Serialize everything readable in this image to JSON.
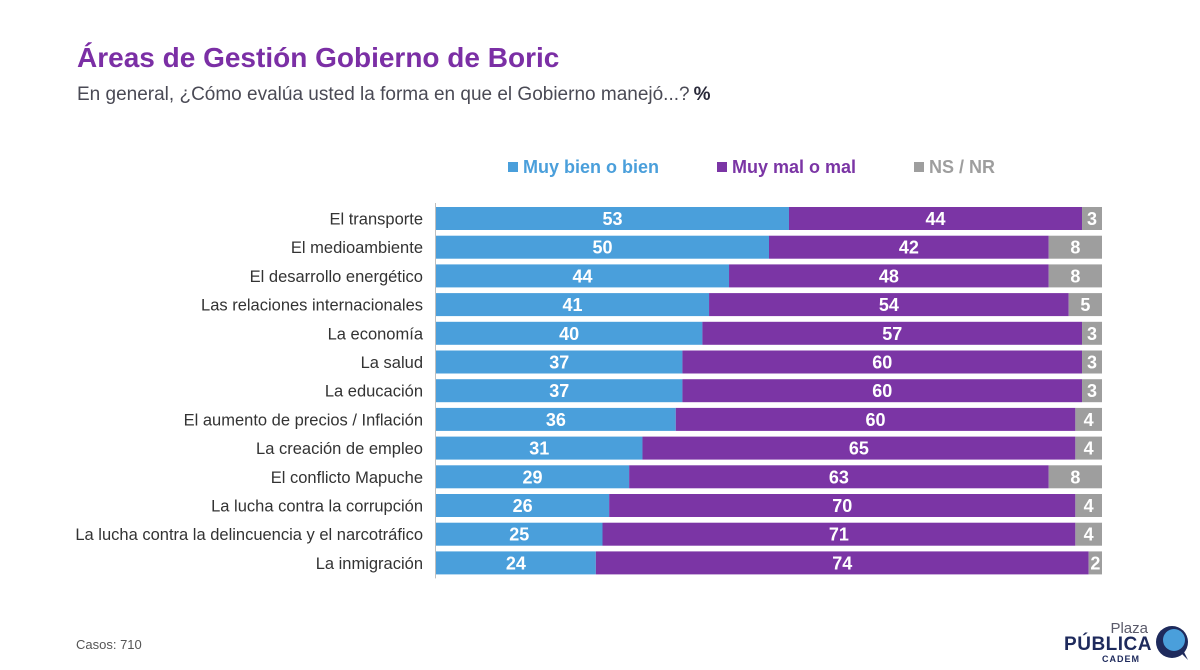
{
  "header": {
    "title": "Áreas de Gestión Gobierno de Boric",
    "subtitle": "En general, ¿Cómo evalúa usted la forma en que el Gobierno manejó...?",
    "unit": "%"
  },
  "footer": {
    "cases": "Casos: 710"
  },
  "logo": {
    "line1": "Plaza",
    "line2": "PÚBLICA",
    "line3": "CADEM"
  },
  "chart_data": {
    "type": "bar",
    "orientation": "horizontal",
    "stacked": true,
    "grid": false,
    "legend_position": "top",
    "xlim": [
      0,
      100
    ],
    "categories": [
      "El transporte",
      "El medioambiente",
      "El desarrollo energético",
      "Las relaciones internacionales",
      "La economía",
      "La salud",
      "La educación",
      "El aumento de precios / Inflación",
      "La creación de empleo",
      "El conflicto Mapuche",
      "La lucha contra la corrupción",
      "La lucha contra la delincuencia y el narcotráfico",
      "La inmigración"
    ],
    "series": [
      {
        "name": "Muy bien o bien",
        "color": "#4A9FDB",
        "values": [
          53,
          50,
          44,
          41,
          40,
          37,
          37,
          36,
          31,
          29,
          26,
          25,
          24
        ]
      },
      {
        "name": "Muy mal o mal",
        "color": "#7B35A5",
        "values": [
          44,
          42,
          48,
          54,
          57,
          60,
          60,
          60,
          65,
          63,
          70,
          71,
          74
        ]
      },
      {
        "name": "NS / NR",
        "color": "#9E9E9E",
        "values": [
          3,
          8,
          8,
          5,
          3,
          3,
          3,
          4,
          4,
          8,
          4,
          4,
          2
        ]
      }
    ]
  }
}
